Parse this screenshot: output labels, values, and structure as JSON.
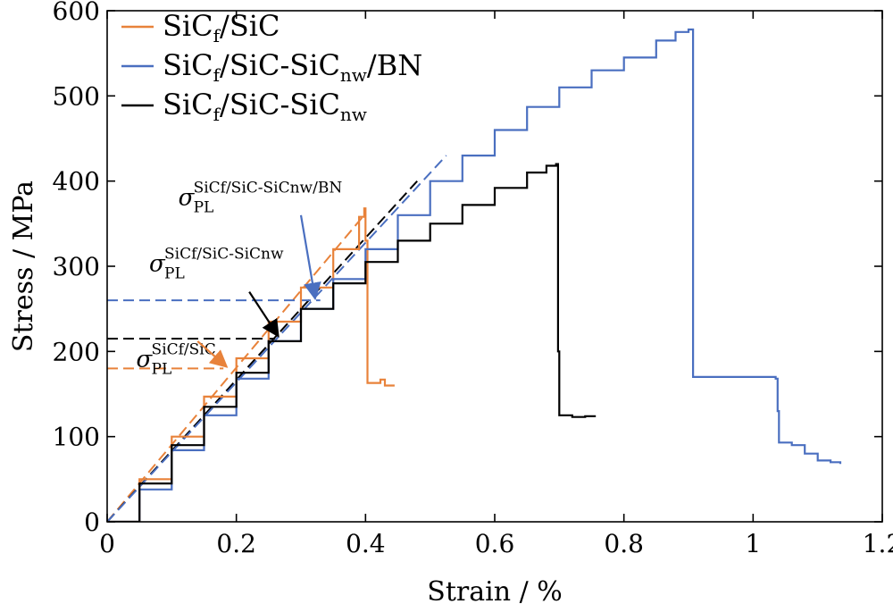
{
  "chart_data": {
    "type": "line",
    "title": "",
    "xlabel": "Strain / %",
    "ylabel": "Stress / MPa",
    "xlim": [
      0,
      1.2
    ],
    "ylim": [
      0,
      600
    ],
    "xticks": [
      "0",
      "0.2",
      "0.4",
      "0.6",
      "0.8",
      "1",
      "1.2"
    ],
    "yticks": [
      "0",
      "100",
      "200",
      "300",
      "400",
      "500",
      "600"
    ],
    "grid": false,
    "legend_position": "top-left",
    "series": [
      {
        "name": "SiCf/SiC",
        "name_parts": {
          "base": "SiC",
          "sub1": "f",
          "mid": "/SiC",
          "sub2": ""
        },
        "color": "#E8823A",
        "x": [
          0,
          0.05,
          0.1,
          0.15,
          0.2,
          0.25,
          0.3,
          0.35,
          0.39,
          0.398,
          0.4,
          0.403,
          0.42,
          0.423,
          0.43,
          0.445
        ],
        "y": [
          0,
          50,
          100,
          147,
          192,
          235,
          275,
          320,
          358,
          368,
          330,
          163,
          163,
          167,
          160,
          160
        ]
      },
      {
        "name": "SiCf/SiC-SiCnw/BN",
        "name_parts": {
          "base": "SiC",
          "sub1": "f",
          "mid": "/SiC-SiC",
          "sub2": "nw",
          "tail": "/BN"
        },
        "color": "#4A6FC0",
        "x": [
          0,
          0.05,
          0.1,
          0.15,
          0.2,
          0.25,
          0.3,
          0.35,
          0.4,
          0.45,
          0.5,
          0.55,
          0.6,
          0.65,
          0.7,
          0.75,
          0.8,
          0.85,
          0.88,
          0.9,
          0.905,
          0.907,
          0.95,
          1.0,
          1.035,
          1.038,
          1.04,
          1.06,
          1.08,
          1.1,
          1.12,
          1.135
        ],
        "y": [
          0,
          38,
          84,
          125,
          168,
          212,
          250,
          285,
          320,
          360,
          400,
          430,
          460,
          487,
          510,
          530,
          545,
          565,
          575,
          578,
          578,
          170,
          170,
          170,
          168,
          130,
          93,
          90,
          80,
          72,
          70,
          68
        ]
      },
      {
        "name": "SiCf/SiC-SiCnw",
        "name_parts": {
          "base": "SiC",
          "sub1": "f",
          "mid": "/SiC-SiC",
          "sub2": "nw"
        },
        "color": "#000000",
        "x": [
          0,
          0.05,
          0.1,
          0.15,
          0.2,
          0.25,
          0.3,
          0.35,
          0.4,
          0.45,
          0.5,
          0.55,
          0.6,
          0.65,
          0.68,
          0.695,
          0.698,
          0.7,
          0.72,
          0.74,
          0.755
        ],
        "y": [
          0,
          45,
          90,
          135,
          175,
          212,
          250,
          280,
          305,
          330,
          350,
          372,
          392,
          410,
          418,
          420,
          200,
          125,
          123,
          124,
          125
        ]
      }
    ],
    "proportional_limit_lines": [
      {
        "series": "SiCf/SiC",
        "color": "#E8823A",
        "y": 180,
        "x_end": 0.18,
        "fit_x": [
          0,
          0.4
        ],
        "fit_y": [
          0,
          362
        ]
      },
      {
        "series": "SiCf/SiC-SiCnw",
        "color": "#000000",
        "y": 215,
        "x_end": 0.26,
        "fit_x": [
          0,
          0.48
        ],
        "fit_y": [
          0,
          400
        ]
      },
      {
        "series": "SiCf/SiC-SiCnw/BN",
        "color": "#4A6FC0",
        "y": 260,
        "x_end": 0.33,
        "fit_x": [
          0,
          0.525
        ],
        "fit_y": [
          0,
          430
        ]
      }
    ],
    "annotations": [
      {
        "series": "SiCf/SiC",
        "sigma": "σ",
        "subscript": "PL",
        "superscript": "SiCf/SiC",
        "color": "#E8823A",
        "text_at": [
          0.045,
          182
        ],
        "arrow_from": [
          0.14,
          212
        ],
        "arrow_to": [
          0.185,
          182
        ]
      },
      {
        "series": "SiCf/SiC-SiCnw",
        "sigma": "σ",
        "subscript": "PL",
        "superscript": "SiCf/SiC-SiCnw",
        "color": "#000000",
        "text_at": [
          0.065,
          294
        ],
        "arrow_from": [
          0.22,
          270
        ],
        "arrow_to": [
          0.265,
          218
        ]
      },
      {
        "series": "SiCf/SiC-SiCnw/BN",
        "sigma": "σ",
        "subscript": "PL",
        "superscript": "SiCf/SiC-SiCnw/BN",
        "color": "#4A6FC0",
        "text_at": [
          0.11,
          372
        ],
        "arrow_from": [
          0.3,
          360
        ],
        "arrow_to": [
          0.322,
          262
        ]
      }
    ]
  }
}
